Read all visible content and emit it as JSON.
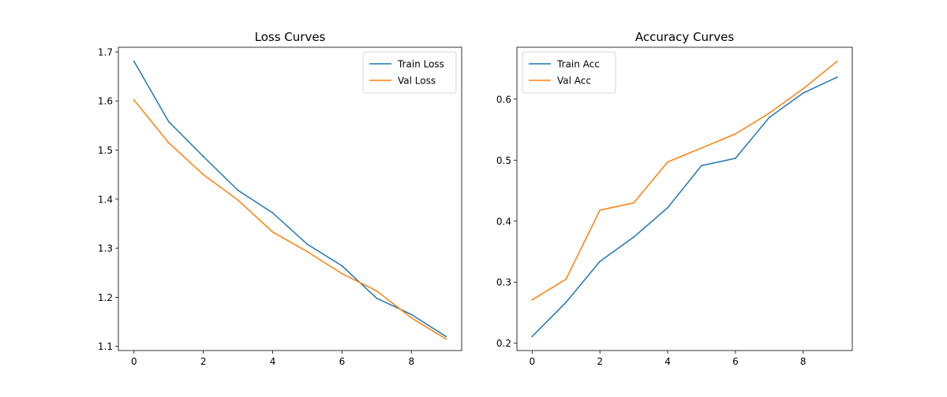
{
  "chart_data": [
    {
      "type": "line",
      "title": "Loss Curves",
      "xlabel": "",
      "ylabel": "",
      "x": [
        0,
        1,
        2,
        3,
        4,
        5,
        6,
        7,
        8,
        9
      ],
      "xlim": [
        -0.45,
        9.45
      ],
      "ylim": [
        1.0915,
        1.7095
      ],
      "xticks": [
        0,
        2,
        4,
        6,
        8
      ],
      "yticks": [
        1.1,
        1.2,
        1.3,
        1.4,
        1.5,
        1.6,
        1.7
      ],
      "yticklabels": [
        "1.1",
        "1.2",
        "1.3",
        "1.4",
        "1.5",
        "1.6",
        "1.7"
      ],
      "grid": false,
      "legend_position": "top-right",
      "series": [
        {
          "name": "Train Loss",
          "color": "#1f77b4",
          "values": [
            1.681,
            1.558,
            1.487,
            1.418,
            1.372,
            1.308,
            1.264,
            1.198,
            1.165,
            1.12
          ]
        },
        {
          "name": "Val Loss",
          "color": "#ff7f0e",
          "values": [
            1.602,
            1.515,
            1.45,
            1.398,
            1.333,
            1.293,
            1.248,
            1.213,
            1.158,
            1.115
          ]
        }
      ]
    },
    {
      "type": "line",
      "title": "Accuracy Curves",
      "xlabel": "",
      "ylabel": "",
      "x": [
        0,
        1,
        2,
        3,
        4,
        5,
        6,
        7,
        8,
        9
      ],
      "xlim": [
        -0.45,
        9.45
      ],
      "ylim": [
        0.188,
        0.685
      ],
      "xticks": [
        0,
        2,
        4,
        6,
        8
      ],
      "yticks": [
        0.2,
        0.3,
        0.4,
        0.5,
        0.6
      ],
      "yticklabels": [
        "0.2",
        "0.3",
        "0.4",
        "0.5",
        "0.6"
      ],
      "grid": false,
      "legend_position": "top-left",
      "series": [
        {
          "name": "Train Acc",
          "color": "#1f77b4",
          "values": [
            0.211,
            0.267,
            0.334,
            0.374,
            0.422,
            0.491,
            0.503,
            0.57,
            0.61,
            0.636
          ]
        },
        {
          "name": "Val Acc",
          "color": "#ff7f0e",
          "values": [
            0.271,
            0.305,
            0.418,
            0.43,
            0.497,
            0.52,
            0.543,
            0.577,
            0.617,
            0.662
          ]
        }
      ]
    }
  ]
}
